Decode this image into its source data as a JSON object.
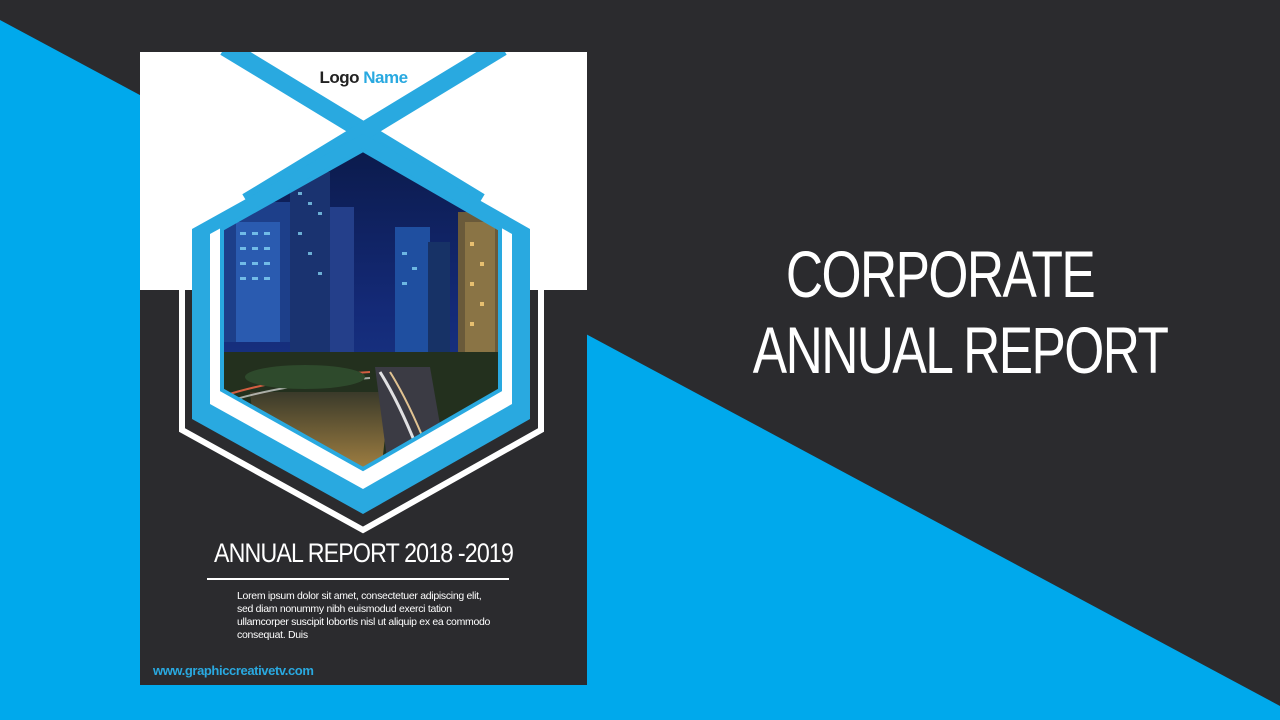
{
  "colors": {
    "background_dark": "#2b2b2e",
    "accent_blue": "#00a9ec",
    "hexagon_blue": "#29a9e0",
    "white": "#ffffff"
  },
  "cover": {
    "logo_word": "Logo",
    "logo_accent_word": "Name",
    "photo_description_icon": "city-night-photo",
    "report_title": "ANNUAL REPORT 2018 -2019",
    "body_text": "Lorem ipsum dolor sit amet, consectetuer adipiscing elit, sed diam nonummy nibh euismodud exerci tation ullamcorper suscipit lobortis nisl ut aliquip ex ea commodo consequat. Duis",
    "website": "www.graphiccreativetv.com"
  },
  "headline": {
    "line1": "CORPORATE",
    "line2": "ANNUAL REPORT"
  }
}
